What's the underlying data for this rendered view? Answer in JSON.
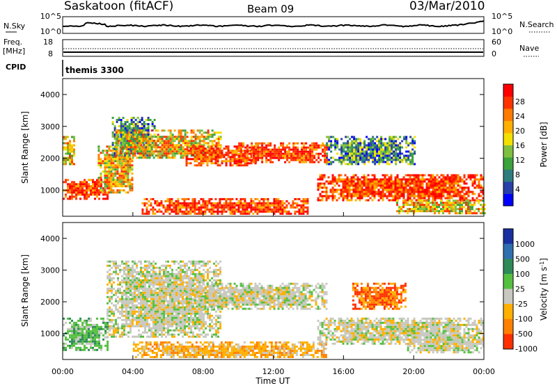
{
  "header": {
    "station": "Saskatoon (fitACF)",
    "beam": "Beam 09",
    "date": "03/Mar/2010"
  },
  "summary_panels": {
    "sky": {
      "left_label": "N.Sky",
      "left_ticks": [
        "10^5",
        "10^0"
      ],
      "right_ticks": [
        "10^5",
        "10^0"
      ],
      "right_label": "N.Search"
    },
    "freq": {
      "left_label_1": "Freq.",
      "left_label_2": "[MHz]",
      "left_ticks": [
        "18",
        "8"
      ],
      "right_ticks": [
        "60",
        "0"
      ],
      "right_label": "Nave"
    },
    "cpid": {
      "label": "CPID",
      "value": "themis 3300"
    }
  },
  "axes": {
    "x_ticks": [
      "00:00",
      "04:00",
      "08:00",
      "12:00",
      "16:00",
      "20:00",
      "00:00"
    ],
    "xlabel": "Time UT",
    "y_ticks": [
      "1000",
      "2000",
      "3000",
      "4000"
    ],
    "ylabel": "Slant Range [km]"
  },
  "colorbars": {
    "power": {
      "label": "Power [dB]",
      "ticks": [
        "28",
        "24",
        "20",
        "16",
        "12",
        "8",
        "4"
      ],
      "colors": [
        "#0000ff",
        "#2b3fa8",
        "#2e7d7d",
        "#3ca23c",
        "#7fc040",
        "#f2e000",
        "#ffb000",
        "#ff7a00",
        "#ff3300",
        "#ff0000"
      ]
    },
    "velocity": {
      "label": "Velocity [m s",
      "label_sup": "-1",
      "label_end": "]",
      "ticks": [
        "1000",
        "500",
        "100",
        "25",
        "-25",
        "-100",
        "-500",
        "-1000"
      ],
      "colors": [
        "#1a2fa0",
        "#2f6fb0",
        "#2e8b57",
        "#55c040",
        "#c8c8c0",
        "#ffb000",
        "#ff8000",
        "#ff3000"
      ]
    }
  },
  "chart_data": [
    {
      "type": "heatmap",
      "panel": "power",
      "xlabel": "Time UT",
      "ylabel": "Slant Range [km]",
      "xlim": [
        0,
        24
      ],
      "ylim": [
        180,
        4500
      ],
      "grid": false,
      "colorbar": "Power [dB]",
      "bands": [
        {
          "t": [
            0,
            2.5
          ],
          "r": [
            750,
            1350
          ],
          "level": "strong"
        },
        {
          "t": [
            0,
            0.6
          ],
          "r": [
            1800,
            2700
          ],
          "level": "moderate"
        },
        {
          "t": [
            2.0,
            4.0
          ],
          "r": [
            900,
            2400
          ],
          "level": "moderate"
        },
        {
          "t": [
            2.8,
            5.2
          ],
          "r": [
            2100,
            3300
          ],
          "level": "weak"
        },
        {
          "t": [
            3.0,
            9.0
          ],
          "r": [
            2000,
            2900
          ],
          "level": "moderate"
        },
        {
          "t": [
            7.0,
            11.0
          ],
          "r": [
            1800,
            2400
          ],
          "level": "strong"
        },
        {
          "t": [
            10.0,
            15.0
          ],
          "r": [
            1900,
            2500
          ],
          "level": "strong"
        },
        {
          "t": [
            4.5,
            14.0
          ],
          "r": [
            250,
            750
          ],
          "level": "strong"
        },
        {
          "t": [
            14.5,
            24.0
          ],
          "r": [
            700,
            1500
          ],
          "level": "strong"
        },
        {
          "t": [
            15.0,
            20.0
          ],
          "r": [
            1800,
            2700
          ],
          "level": "weak"
        },
        {
          "t": [
            19.0,
            24.0
          ],
          "r": [
            300,
            700
          ],
          "level": "moderate"
        }
      ]
    },
    {
      "type": "heatmap",
      "panel": "velocity",
      "xlabel": "Time UT",
      "ylabel": "Slant Range [km]",
      "xlim": [
        0,
        24
      ],
      "ylim": [
        180,
        4500
      ],
      "grid": false,
      "colorbar": "Velocity [m s-1]",
      "bands": [
        {
          "t": [
            0,
            2.5
          ],
          "r": [
            500,
            1500
          ],
          "level": "toward-low"
        },
        {
          "t": [
            2.5,
            9.0
          ],
          "r": [
            900,
            3300
          ],
          "level": "near-zero"
        },
        {
          "t": [
            7.0,
            15.0
          ],
          "r": [
            1800,
            2600
          ],
          "level": "near-zero"
        },
        {
          "t": [
            4.0,
            15.0
          ],
          "r": [
            250,
            750
          ],
          "level": "away-low"
        },
        {
          "t": [
            14.5,
            24.0
          ],
          "r": [
            700,
            1500
          ],
          "level": "near-zero"
        },
        {
          "t": [
            16.5,
            19.5
          ],
          "r": [
            1800,
            2600
          ],
          "level": "away-high"
        },
        {
          "t": [
            19.5,
            24.0
          ],
          "r": [
            400,
            900
          ],
          "level": "near-zero"
        }
      ]
    }
  ]
}
